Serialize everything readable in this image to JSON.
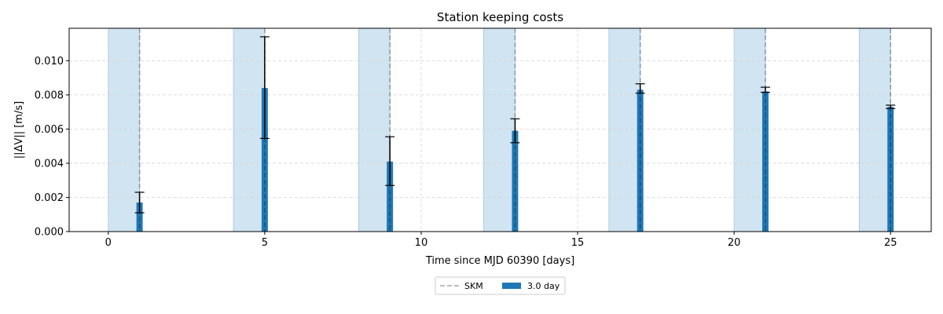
{
  "chart_data": {
    "type": "bar",
    "title": "Station keeping costs",
    "xlabel": "Time since MJD 60390 [days]",
    "ylabel": "||ΔV|| [m/s]",
    "xlim": [
      -1.25,
      26.3
    ],
    "ylim": [
      0,
      0.0119
    ],
    "xticks": [
      0,
      5,
      10,
      15,
      20,
      25
    ],
    "xtick_labels": [
      "0",
      "5",
      "10",
      "15",
      "20",
      "25"
    ],
    "yticks": [
      0,
      0.002,
      0.004,
      0.006,
      0.008,
      0.01
    ],
    "ytick_labels": [
      "0.000",
      "0.002",
      "0.004",
      "0.006",
      "0.008",
      "0.010"
    ],
    "grid": true,
    "legend": "bottom-center",
    "bar_width": 0.2,
    "shaded_intervals": [
      [
        0,
        1
      ],
      [
        4,
        5
      ],
      [
        8,
        9
      ],
      [
        12,
        13
      ],
      [
        16,
        17
      ],
      [
        20,
        21
      ],
      [
        24,
        25
      ]
    ],
    "skm_times": [
      1,
      5,
      9,
      13,
      17,
      21,
      25
    ],
    "series": [
      {
        "name": "3.0 day",
        "x": [
          1,
          5,
          9,
          13,
          17,
          21,
          25
        ],
        "values": [
          0.0017,
          0.0084,
          0.0041,
          0.0059,
          0.0083,
          0.0082,
          0.0073
        ],
        "err_low": [
          0.0011,
          0.00545,
          0.0027,
          0.0052,
          0.0081,
          0.00815,
          0.0072
        ],
        "err_high": [
          0.0023,
          0.0114,
          0.00555,
          0.0066,
          0.00865,
          0.00845,
          0.0074
        ]
      }
    ],
    "legend_entries": [
      {
        "label": "SKM",
        "style": "dashed-line"
      },
      {
        "label": "3.0 day",
        "style": "bar"
      }
    ],
    "colors": {
      "bar": "#1f77b4",
      "shade": "#b3d2e7",
      "skm_line": "#8c9aab",
      "error": "#000000",
      "grid": "#d3d3d3"
    }
  }
}
